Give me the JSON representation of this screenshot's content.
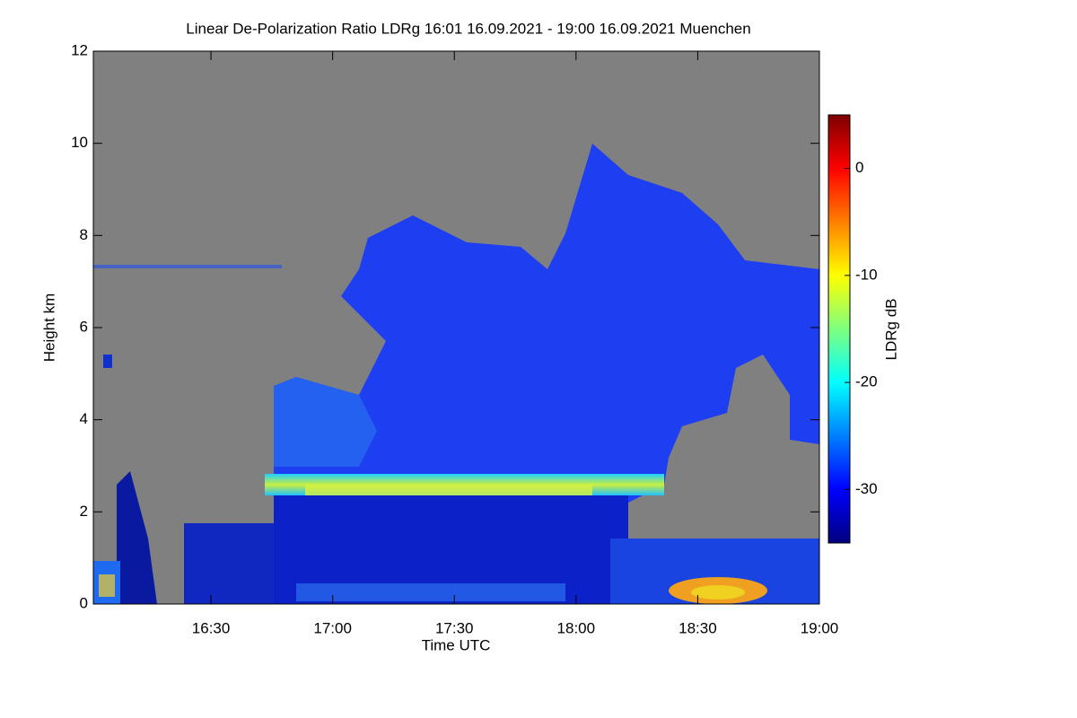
{
  "chart_data": {
    "type": "heatmap",
    "title": "Linear De-Polarization Ratio LDRg   16:01 16.09.2021 - 19:00 16.09.2021 Muenchen",
    "x_label": "Time UTC",
    "y_label": "Height km",
    "colorbar_label": "LDRg dB",
    "xlim": [
      961,
      1140
    ],
    "xticks": [
      {
        "value": 990,
        "label": "16:30"
      },
      {
        "value": 1020,
        "label": "17:00"
      },
      {
        "value": 1050,
        "label": "17:30"
      },
      {
        "value": 1080,
        "label": "18:00"
      },
      {
        "value": 1110,
        "label": "18:30"
      },
      {
        "value": 1140,
        "label": "19:00"
      }
    ],
    "ylim": [
      0,
      12
    ],
    "yticks": [
      0,
      2,
      4,
      6,
      8,
      10,
      12
    ],
    "clim": [
      -35,
      5
    ],
    "cticks": [
      -30,
      -20,
      -10,
      0
    ],
    "colormap": "jet"
  }
}
